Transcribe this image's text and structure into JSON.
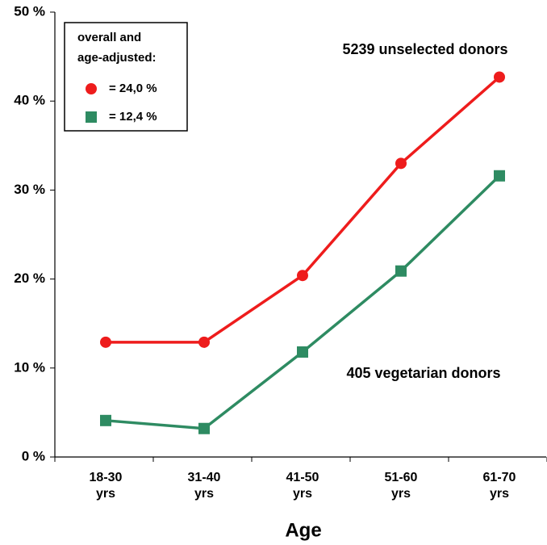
{
  "chart_data": {
    "type": "line",
    "categories": [
      "18-30 yrs",
      "31-40 yrs",
      "41-50 yrs",
      "51-60 yrs",
      "61-70 yrs"
    ],
    "series": [
      {
        "name": "= 24,0 %",
        "color": "#ee1c1c",
        "marker": "circle",
        "values": [
          12.9,
          12.9,
          20.4,
          33.0,
          42.7
        ]
      },
      {
        "name": "= 12,4 %",
        "color": "#2e8b62",
        "marker": "square",
        "values": [
          4.1,
          3.2,
          11.8,
          20.9,
          31.6
        ]
      }
    ],
    "ylim": [
      0,
      50
    ],
    "yticks": [
      {
        "value": 0,
        "label": "0 %"
      },
      {
        "value": 10,
        "label": "10 %"
      },
      {
        "value": 20,
        "label": "20 %"
      },
      {
        "value": 30,
        "label": "30 %"
      },
      {
        "value": 40,
        "label": "40 %"
      },
      {
        "value": 50,
        "label": "50 %"
      }
    ],
    "xlabel": "Age",
    "legend_title": "overall and age-adjusted:",
    "legend_position": "upper left",
    "annotations": [
      "5239 unselected donors",
      "405 vegetarian donors"
    ],
    "grid": false
  }
}
